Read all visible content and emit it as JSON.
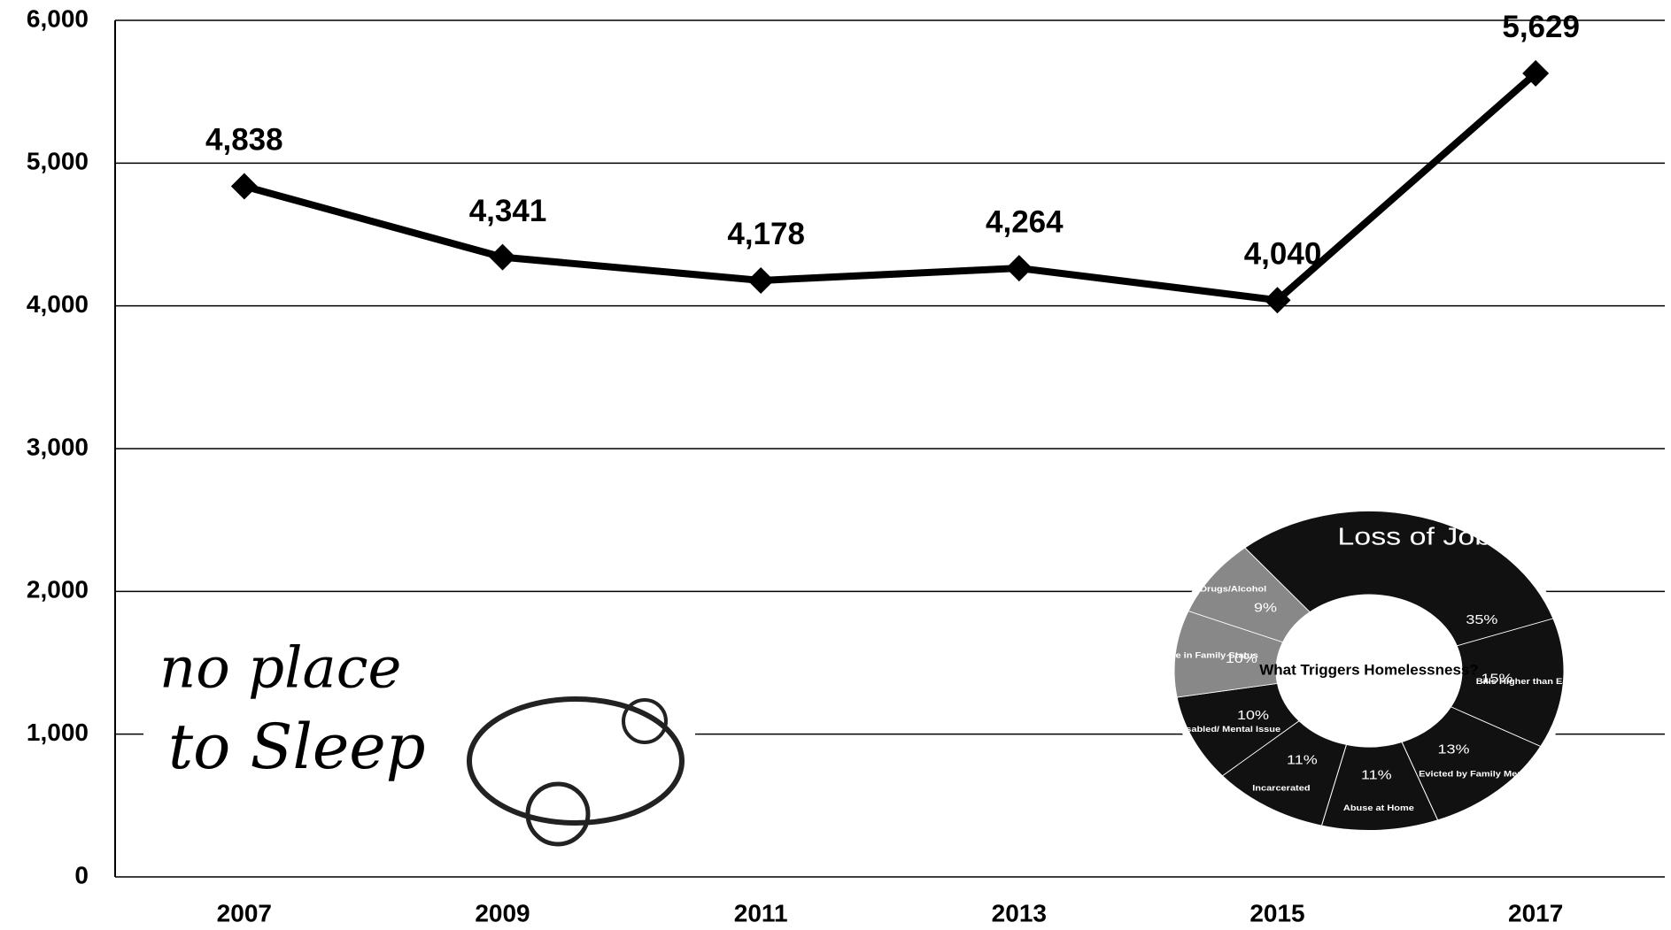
{
  "chart_data": {
    "type": "line",
    "categories": [
      "2007",
      "2009",
      "2011",
      "2013",
      "2015",
      "2017"
    ],
    "values": [
      4838,
      4341,
      4178,
      4264,
      4040,
      5629
    ],
    "value_labels": [
      "4,838",
      "4,341",
      "4,178",
      "4,264",
      "4,040",
      "5,629"
    ],
    "color": "#000000",
    "ylim": [
      0,
      6000
    ],
    "yticks": [
      0,
      {
        "value": 1000,
        "label": "1,000"
      },
      {
        "value": 2000,
        "label": "2,000"
      },
      {
        "value": 3000,
        "label": "3,000"
      },
      {
        "value": 4000,
        "label": "4,000"
      },
      {
        "value": 5000,
        "label": "5,000"
      },
      {
        "value": 6000,
        "label": "6,000"
      }
    ],
    "grid": true
  },
  "drawing": {
    "line1": "no place",
    "line2": "to Sleep"
  },
  "inset_pie": {
    "type": "donut",
    "title": "What Triggers Homelessness?",
    "categories": [
      "Loss of Job",
      "Bills Higher than Earnings",
      "Evicted by Family Member",
      "Abuse at Home",
      "Incarcerated",
      "Sick/Disabled/ Mental Issue",
      "Change in Family Status",
      "Drugs/Alcohol"
    ],
    "values": [
      35,
      15,
      13,
      11,
      11,
      10,
      10,
      9
    ],
    "value_labels": [
      "35%",
      "15%",
      "13%",
      "11%",
      "11%",
      "10%",
      "10%",
      "9%"
    ],
    "colors": [
      "#111111",
      "#111111",
      "#111111",
      "#111111",
      "#111111",
      "#111111",
      "#888888",
      "#888888"
    ]
  }
}
